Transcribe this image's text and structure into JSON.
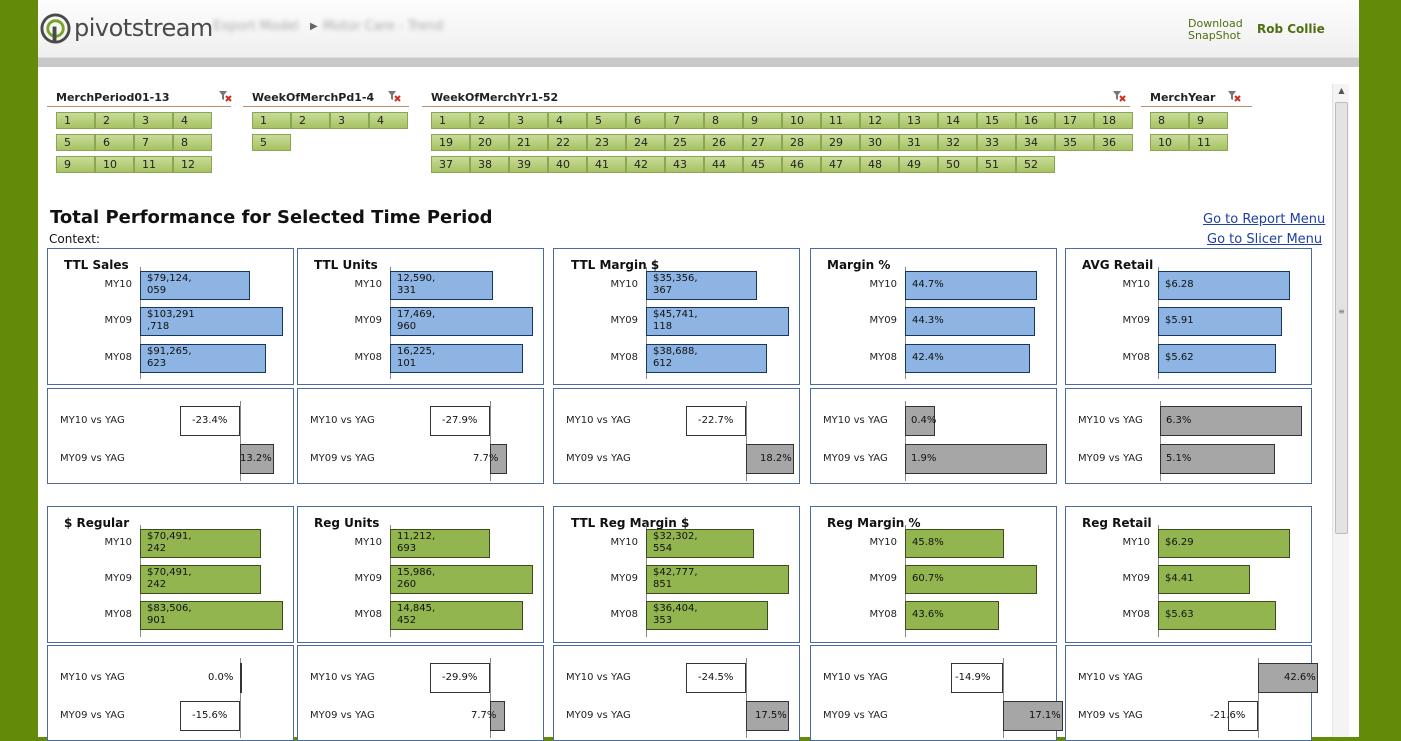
{
  "app": {
    "logo_text": "pivotstream",
    "breadcrumb": [
      "Export Model",
      "Motor Care - Trend"
    ],
    "download_label_1": "Download",
    "download_label_2": "SnapShot",
    "user_name": "Rob Collie"
  },
  "slicers": [
    {
      "title": "MerchPeriod01-13",
      "items": [
        "1",
        "2",
        "3",
        "4",
        "5",
        "6",
        "7",
        "8",
        "9",
        "10",
        "11",
        "12"
      ]
    },
    {
      "title": "WeekOfMerchPd1-4",
      "items": [
        "1",
        "2",
        "3",
        "4",
        "5"
      ]
    },
    {
      "title": "WeekOfMerchYr1-52",
      "items": [
        "1",
        "2",
        "3",
        "4",
        "5",
        "6",
        "7",
        "8",
        "9",
        "10",
        "11",
        "12",
        "13",
        "14",
        "15",
        "16",
        "17",
        "18",
        "19",
        "20",
        "21",
        "22",
        "23",
        "24",
        "25",
        "26",
        "27",
        "28",
        "29",
        "30",
        "31",
        "32",
        "33",
        "34",
        "35",
        "36",
        "37",
        "38",
        "39",
        "40",
        "41",
        "42",
        "43",
        "44",
        "45",
        "46",
        "47",
        "48",
        "49",
        "50",
        "51",
        "52"
      ]
    },
    {
      "title": "MerchYear",
      "items": [
        "8",
        "9",
        "10",
        "11"
      ]
    }
  ],
  "report": {
    "title": "Total Performance for Selected Time Period",
    "context_label": "Context:",
    "report_menu_link": "Go to Report Menu",
    "slicer_menu_link": "Go to Slicer Menu"
  },
  "colors": {
    "total_bar": "#8db4e2",
    "regular_bar": "#92b550",
    "growth_bar": "#a6a6a6",
    "brand_green": "#638a09"
  },
  "chart_data": [
    {
      "type": "bar",
      "title": "TTL Sales",
      "categories": [
        "MY10",
        "MY09",
        "MY08"
      ],
      "values": [
        79124059,
        103291718,
        91265623
      ],
      "labels": [
        [
          "$79,124,",
          "059"
        ],
        [
          "$103,291",
          ",718"
        ],
        [
          "$91,265,",
          "623"
        ]
      ]
    },
    {
      "type": "bar",
      "title": "TTL Units",
      "categories": [
        "MY10",
        "MY09",
        "MY08"
      ],
      "values": [
        12590331,
        17469960,
        16225101
      ],
      "labels": [
        [
          "12,590,",
          "331"
        ],
        [
          "17,469,",
          "960"
        ],
        [
          "16,225,",
          "101"
        ]
      ]
    },
    {
      "type": "bar",
      "title": "TTL Margin $",
      "categories": [
        "MY10",
        "MY09",
        "MY08"
      ],
      "values": [
        35356367,
        45741118,
        38688612
      ],
      "labels": [
        [
          "$35,356,",
          "367"
        ],
        [
          "$45,741,",
          "118"
        ],
        [
          "$38,688,",
          "612"
        ]
      ]
    },
    {
      "type": "bar",
      "title": "Margin %",
      "categories": [
        "MY10",
        "MY09",
        "MY08"
      ],
      "values": [
        44.7,
        44.3,
        42.4
      ],
      "labels": [
        [
          "44.7%"
        ],
        [
          "44.3%"
        ],
        [
          "42.4%"
        ]
      ]
    },
    {
      "type": "bar",
      "title": "AVG Retail",
      "categories": [
        "MY10",
        "MY09",
        "MY08"
      ],
      "values": [
        6.28,
        5.91,
        5.62
      ],
      "labels": [
        [
          "$6.28"
        ],
        [
          "$5.91"
        ],
        [
          "$5.62"
        ]
      ]
    },
    {
      "type": "bar",
      "title": "",
      "categories": [
        "MY10 vs YAG",
        "MY09 vs YAG"
      ],
      "values": [
        -23.4,
        13.2
      ],
      "labels": [
        "-23.4%",
        "13.2%"
      ]
    },
    {
      "type": "bar",
      "title": "",
      "categories": [
        "MY10 vs YAG",
        "MY09 vs YAG"
      ],
      "values": [
        -27.9,
        7.7
      ],
      "labels": [
        "-27.9%",
        "7.7%"
      ]
    },
    {
      "type": "bar",
      "title": "",
      "categories": [
        "MY10 vs YAG",
        "MY09 vs YAG"
      ],
      "values": [
        -22.7,
        18.2
      ],
      "labels": [
        "-22.7%",
        "18.2%"
      ]
    },
    {
      "type": "bar",
      "title": "",
      "categories": [
        "MY10 vs YAG",
        "MY09 vs YAG"
      ],
      "values": [
        0.4,
        1.9
      ],
      "labels": [
        "0.4%",
        "1.9%"
      ]
    },
    {
      "type": "bar",
      "title": "",
      "categories": [
        "MY10 vs YAG",
        "MY09 vs YAG"
      ],
      "values": [
        6.3,
        5.1
      ],
      "labels": [
        "6.3%",
        "5.1%"
      ]
    },
    {
      "type": "bar",
      "title": "$ Regular",
      "categories": [
        "MY10",
        "MY09",
        "MY08"
      ],
      "values": [
        70491242,
        70491242,
        83506901
      ],
      "labels": [
        [
          "$70,491,",
          "242"
        ],
        [
          "$70,491,",
          "242"
        ],
        [
          "$83,506,",
          "901"
        ]
      ]
    },
    {
      "type": "bar",
      "title": "Reg Units",
      "categories": [
        "MY10",
        "MY09",
        "MY08"
      ],
      "values": [
        11212693,
        15986260,
        14845452
      ],
      "labels": [
        [
          "11,212,",
          "693"
        ],
        [
          "15,986,",
          "260"
        ],
        [
          "14,845,",
          "452"
        ]
      ]
    },
    {
      "type": "bar",
      "title": "TTL Reg Margin $",
      "categories": [
        "MY10",
        "MY09",
        "MY08"
      ],
      "values": [
        32302554,
        42777851,
        36404353
      ],
      "labels": [
        [
          "$32,302,",
          "554"
        ],
        [
          "$42,777,",
          "851"
        ],
        [
          "$36,404,",
          "353"
        ]
      ]
    },
    {
      "type": "bar",
      "title": "Reg Margin %",
      "categories": [
        "MY10",
        "MY09",
        "MY08"
      ],
      "values": [
        45.8,
        60.7,
        43.6
      ],
      "labels": [
        [
          "45.8%"
        ],
        [
          "60.7%"
        ],
        [
          "43.6%"
        ]
      ]
    },
    {
      "type": "bar",
      "title": "Reg Retail",
      "categories": [
        "MY10",
        "MY09",
        "MY08"
      ],
      "values": [
        6.29,
        4.41,
        5.63
      ],
      "labels": [
        [
          "$6.29"
        ],
        [
          "$4.41"
        ],
        [
          "$5.63"
        ]
      ]
    },
    {
      "type": "bar",
      "title": "",
      "categories": [
        "MY10 vs YAG",
        "MY09 vs YAG"
      ],
      "values": [
        0.0,
        -15.6
      ],
      "labels": [
        "0.0%",
        "-15.6%"
      ]
    },
    {
      "type": "bar",
      "title": "",
      "categories": [
        "MY10 vs YAG",
        "MY09 vs YAG"
      ],
      "values": [
        -29.9,
        7.7
      ],
      "labels": [
        "-29.9%",
        "7.7%"
      ]
    },
    {
      "type": "bar",
      "title": "",
      "categories": [
        "MY10 vs YAG",
        "MY09 vs YAG"
      ],
      "values": [
        -24.5,
        17.5
      ],
      "labels": [
        "-24.5%",
        "17.5%"
      ]
    },
    {
      "type": "bar",
      "title": "",
      "categories": [
        "MY10 vs YAG",
        "MY09 vs YAG"
      ],
      "values": [
        -14.9,
        17.1
      ],
      "labels": [
        "-14.9%",
        "17.1%"
      ]
    },
    {
      "type": "bar",
      "title": "",
      "categories": [
        "MY10 vs YAG",
        "MY09 vs YAG"
      ],
      "values": [
        42.6,
        -21.6
      ],
      "labels": [
        "42.6%",
        "-21.6%"
      ]
    }
  ]
}
